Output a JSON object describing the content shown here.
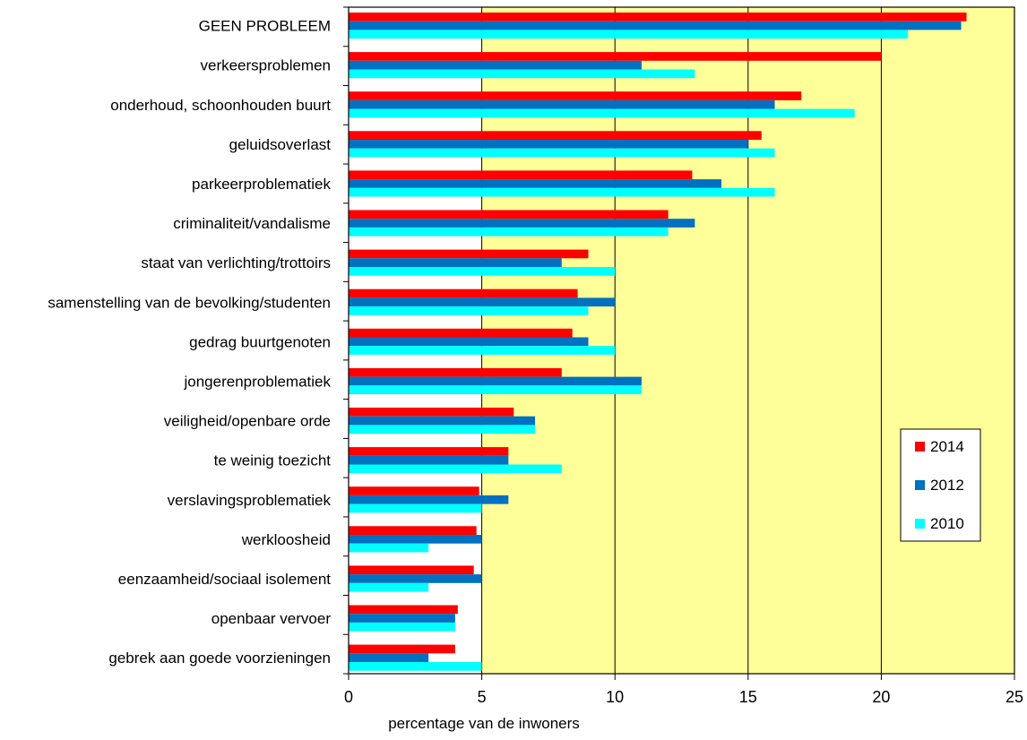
{
  "chart_data": {
    "type": "bar",
    "orientation": "horizontal",
    "title": "",
    "xlabel": "percentage van de inwoners",
    "ylabel": "",
    "xlim": [
      0,
      25
    ],
    "x_ticks": [
      "0",
      "5",
      "10",
      "15",
      "20",
      "25"
    ],
    "grid": "vertical at 5, 10, 15, 20",
    "legend_position": "right, lower middle",
    "categories": [
      "GEEN PROBLEEM",
      "verkeersproblemen",
      "onderhoud, schoonhouden buurt",
      "geluidsoverlast",
      "parkeerproblematiek",
      "criminaliteit/vandalisme",
      "staat van verlichting/trottoirs",
      "samenstelling van de bevolking/studenten",
      "gedrag buurtgenoten",
      "jongerenproblematiek",
      "veiligheid/openbare orde",
      "te weinig toezicht",
      "verslavingsproblematiek",
      "werkloosheid",
      "eenzaamheid/sociaal isolement",
      "openbaar vervoer",
      "gebrek aan goede voorzieningen"
    ],
    "series": [
      {
        "name": "2014",
        "color": "#ff0000",
        "values": [
          23.2,
          20,
          17,
          15.5,
          12.9,
          12,
          9,
          8.6,
          8.4,
          8,
          6.2,
          6,
          4.9,
          4.8,
          4.7,
          4.1,
          4
        ]
      },
      {
        "name": "2012",
        "color": "#0070c0",
        "values": [
          23,
          11,
          16,
          15,
          14,
          13,
          8,
          10,
          9,
          11,
          7,
          6,
          6,
          5,
          5,
          4,
          3
        ]
      },
      {
        "name": "2010",
        "color": "#00ffff",
        "values": [
          21,
          13,
          19,
          16,
          16,
          12,
          10,
          9,
          10,
          11,
          7,
          8,
          5,
          3,
          3,
          4,
          5
        ]
      }
    ]
  },
  "colors": {
    "plot_background": "#ffff99",
    "plot_first_band": "#ffffff",
    "gridline": "#000000"
  }
}
